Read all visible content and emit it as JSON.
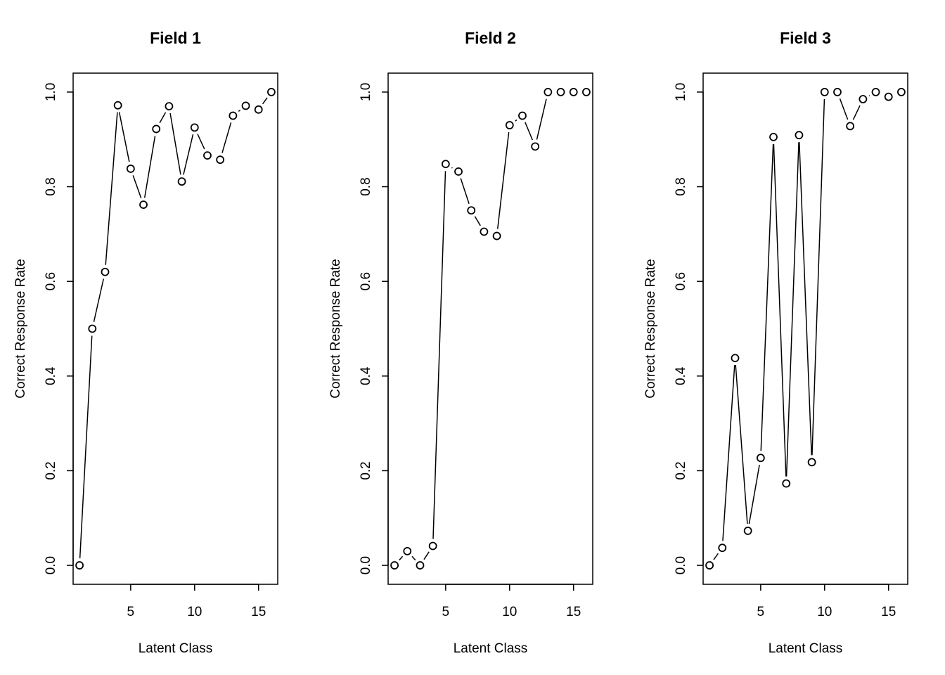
{
  "chart_data": [
    {
      "type": "line",
      "title": "Field 1",
      "xlabel": "Latent Class",
      "ylabel": "Correct Response Rate",
      "x": [
        1,
        2,
        3,
        4,
        5,
        6,
        7,
        8,
        9,
        10,
        11,
        12,
        13,
        14,
        15,
        16
      ],
      "values": [
        0.0,
        0.5,
        0.62,
        0.972,
        0.838,
        0.762,
        0.922,
        0.97,
        0.811,
        0.925,
        0.866,
        0.857,
        0.95,
        0.971,
        0.963,
        1.0
      ],
      "xlim": [
        0.5,
        16.5
      ],
      "ylim": [
        -0.04,
        1.04
      ],
      "xticks": [
        5,
        10,
        15
      ],
      "yticks": [
        0.0,
        0.2,
        0.4,
        0.6,
        0.8,
        1.0
      ],
      "xtick_labels": [
        "5",
        "10",
        "15"
      ],
      "ytick_labels": [
        "0.0",
        "0.2",
        "0.4",
        "0.6",
        "0.8",
        "1.0"
      ],
      "marker": "open-circle",
      "grid": false
    },
    {
      "type": "line",
      "title": "Field 2",
      "xlabel": "Latent Class",
      "ylabel": "Correct Response Rate",
      "x": [
        1,
        2,
        3,
        4,
        5,
        6,
        7,
        8,
        9,
        10,
        11,
        12,
        13,
        14,
        15,
        16
      ],
      "values": [
        0.0,
        0.03,
        0.0,
        0.041,
        0.848,
        0.832,
        0.75,
        0.705,
        0.696,
        0.93,
        0.95,
        0.885,
        1.0,
        1.0,
        1.0,
        1.0
      ],
      "xlim": [
        0.5,
        16.5
      ],
      "ylim": [
        -0.04,
        1.04
      ],
      "xticks": [
        5,
        10,
        15
      ],
      "yticks": [
        0.0,
        0.2,
        0.4,
        0.6,
        0.8,
        1.0
      ],
      "xtick_labels": [
        "5",
        "10",
        "15"
      ],
      "ytick_labels": [
        "0.0",
        "0.2",
        "0.4",
        "0.6",
        "0.8",
        "1.0"
      ],
      "marker": "open-circle",
      "grid": false
    },
    {
      "type": "line",
      "title": "Field 3",
      "xlabel": "Latent Class",
      "ylabel": "Correct Response Rate",
      "x": [
        1,
        2,
        3,
        4,
        5,
        6,
        7,
        8,
        9,
        10,
        11,
        12,
        13,
        14,
        15,
        16
      ],
      "values": [
        0.0,
        0.037,
        0.438,
        0.073,
        0.227,
        0.905,
        0.173,
        0.909,
        0.218,
        1.0,
        1.0,
        0.928,
        0.985,
        1.0,
        0.99,
        1.0
      ],
      "xlim": [
        0.5,
        16.5
      ],
      "ylim": [
        -0.04,
        1.04
      ],
      "xticks": [
        5,
        10,
        15
      ],
      "yticks": [
        0.0,
        0.2,
        0.4,
        0.6,
        0.8,
        1.0
      ],
      "xtick_labels": [
        "5",
        "10",
        "15"
      ],
      "ytick_labels": [
        "0.0",
        "0.2",
        "0.4",
        "0.6",
        "0.8",
        "1.0"
      ],
      "marker": "open-circle",
      "grid": false
    }
  ]
}
